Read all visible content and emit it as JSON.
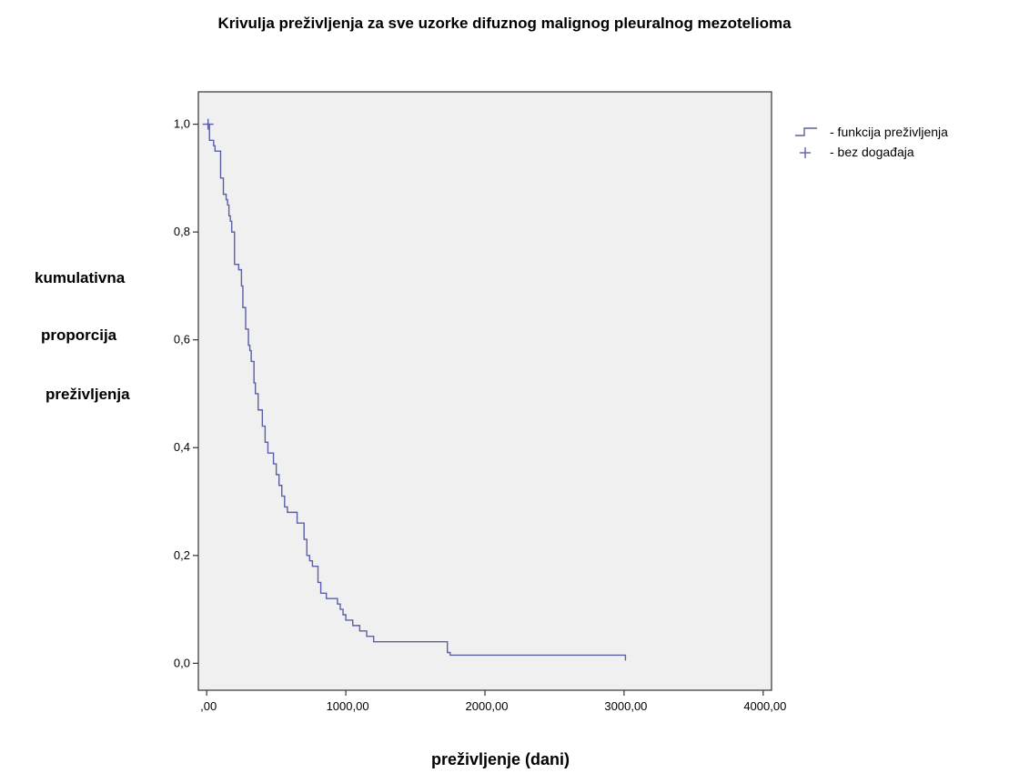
{
  "chart_data": {
    "type": "line",
    "title": "Krivulja preživljenja za sve uzorke difuznog malignog pleuralnog mezotelioma",
    "xlabel": "preživljenje (dani)",
    "ylabel_lines": [
      "kumulativna",
      "proporcija",
      "preživljenja"
    ],
    "xlim": [
      -60,
      4060
    ],
    "ylim": [
      -0.05,
      1.06
    ],
    "x_ticks": [
      0,
      1000,
      2000,
      3000,
      4000
    ],
    "x_tick_labels": [
      ",00",
      "1000,00",
      "2000,00",
      "3000,00",
      "4000,00"
    ],
    "y_ticks": [
      0,
      0.2,
      0.4,
      0.6,
      0.8,
      1.0
    ],
    "y_tick_labels": [
      "0,0",
      "0,2",
      "0,4",
      "0,6",
      "0,8",
      "1,0"
    ],
    "grid": false,
    "legend_position": "right",
    "colors": {
      "curve": "#5a5fa6",
      "plot_bg": "#f0f0f0",
      "frame": "#333333"
    },
    "series": [
      {
        "name": "- funkcija preživljenja",
        "step": true,
        "x": [
          0,
          20,
          50,
          60,
          100,
          120,
          140,
          150,
          160,
          170,
          180,
          200,
          230,
          250,
          260,
          280,
          300,
          310,
          320,
          340,
          350,
          370,
          380,
          400,
          420,
          440,
          460,
          480,
          500,
          520,
          540,
          560,
          580,
          600,
          620,
          650,
          700,
          720,
          740,
          760,
          800,
          820,
          860,
          880,
          940,
          960,
          980,
          1000,
          1050,
          1100,
          1150,
          1200,
          1700,
          1730,
          1750,
          3000,
          3010
        ],
        "y": [
          1.0,
          0.97,
          0.96,
          0.95,
          0.9,
          0.87,
          0.86,
          0.85,
          0.83,
          0.82,
          0.8,
          0.74,
          0.73,
          0.7,
          0.66,
          0.62,
          0.59,
          0.58,
          0.56,
          0.52,
          0.5,
          0.47,
          0.47,
          0.44,
          0.41,
          0.39,
          0.39,
          0.37,
          0.35,
          0.33,
          0.31,
          0.29,
          0.28,
          0.28,
          0.28,
          0.26,
          0.23,
          0.2,
          0.19,
          0.18,
          0.15,
          0.13,
          0.12,
          0.12,
          0.11,
          0.1,
          0.09,
          0.08,
          0.07,
          0.06,
          0.05,
          0.04,
          0.04,
          0.02,
          0.015,
          0.015,
          0.005
        ]
      }
    ],
    "censored": {
      "name": "- bez događaja",
      "x": [
        10
      ],
      "y": [
        1.0
      ]
    }
  }
}
